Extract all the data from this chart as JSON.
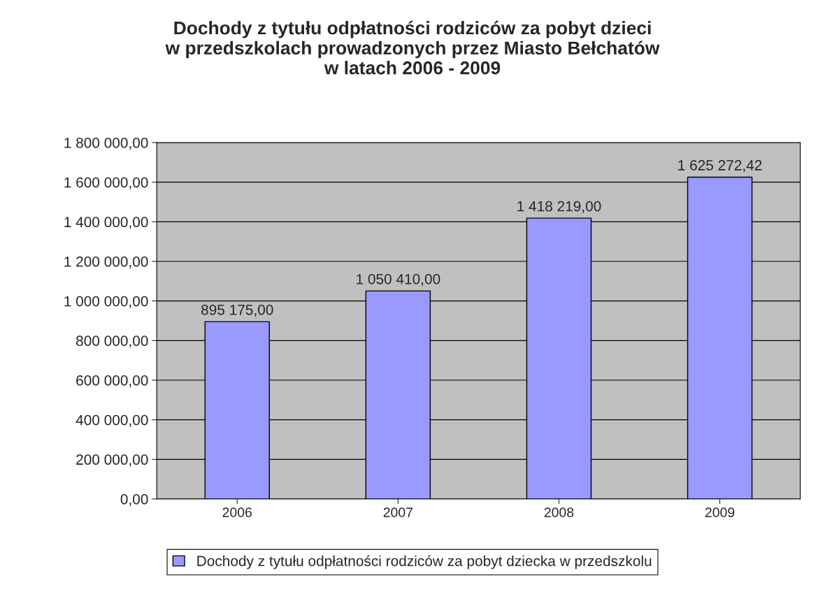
{
  "chart_data": {
    "type": "bar",
    "title": "Dochody z tytułu odpłatności rodziców za pobyt dzieci\nw przedszkolach prowadzonych przez Miasto Bełchatów\nw latach 2006 - 2009",
    "categories": [
      "2006",
      "2007",
      "2008",
      "2009"
    ],
    "series": [
      {
        "name": "Dochody z tytułu odpłatności rodziców za pobyt dziecka w przedszkolu",
        "color": "#9999ff",
        "values": [
          895175,
          1050410,
          1418219,
          1625272.42
        ],
        "value_labels": [
          "895 175,00",
          "1 050 410,00",
          "1 418 219,00",
          "1 625 272,42"
        ]
      }
    ],
    "ylim": [
      0,
      1800000
    ],
    "yticks": [
      {
        "value": 0,
        "label": "0,00"
      },
      {
        "value": 200000,
        "label": "200 000,00"
      },
      {
        "value": 400000,
        "label": "400 000,00"
      },
      {
        "value": 600000,
        "label": "600 000,00"
      },
      {
        "value": 800000,
        "label": "800 000,00"
      },
      {
        "value": 1000000,
        "label": "1 000 000,00"
      },
      {
        "value": 1200000,
        "label": "1 200 000,00"
      },
      {
        "value": 1400000,
        "label": "1 400 000,00"
      },
      {
        "value": 1600000,
        "label": "1 600 000,00"
      },
      {
        "value": 1800000,
        "label": "1 800 000,00"
      }
    ],
    "grid": "y",
    "legend": "bottom"
  }
}
